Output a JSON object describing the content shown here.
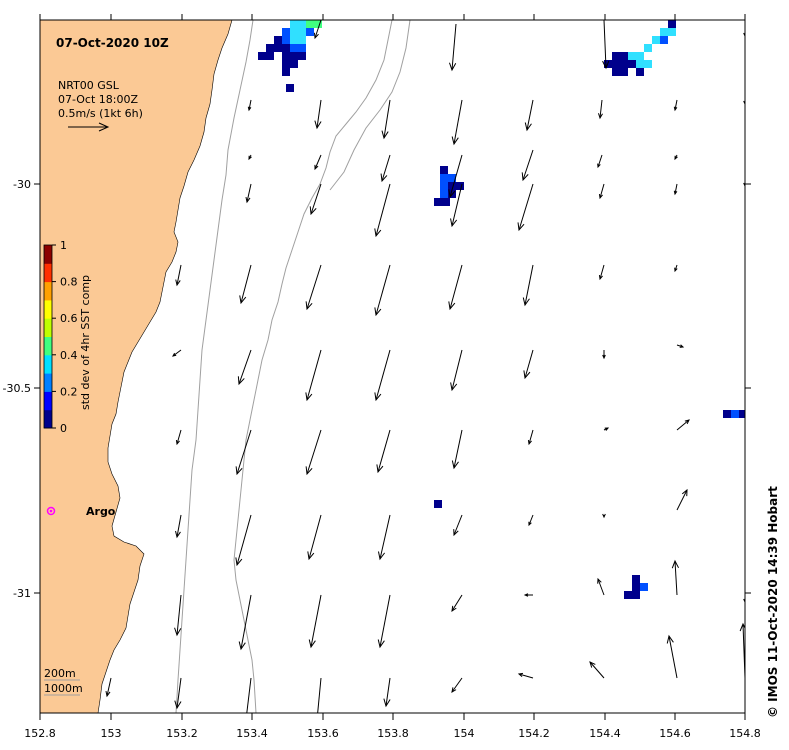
{
  "title": "07-Oct-2020 10Z",
  "legend": {
    "product": "NRT00 GSL",
    "time": "07-Oct 18:00Z",
    "scale_text": "0.5m/s (1kt 6h)"
  },
  "colorbar": {
    "label": "std dev of 4hr SST comp",
    "ticks": [
      "0",
      "0.2",
      "0.4",
      "0.6",
      "0.8",
      "1"
    ],
    "colors": [
      "#00008c",
      "#0000ff",
      "#0080ff",
      "#00e0ff",
      "#40ff80",
      "#c0ff00",
      "#ffff00",
      "#ffa000",
      "#ff3000",
      "#8c0000"
    ]
  },
  "x_ticks": [
    "152.8",
    "153",
    "153.2",
    "153.4",
    "153.6",
    "153.8",
    "154",
    "154.2",
    "154.4",
    "154.6",
    "154.8"
  ],
  "y_ticks": [
    "-30",
    "-30.5",
    "-31"
  ],
  "argo_label": "Argo",
  "depth_legend": [
    "200m",
    "1000m"
  ],
  "credit": "© IMOS 11-Oct-2020 14:39 Hobart",
  "colors": {
    "land": "#fbc995",
    "argo": "#ff00ff",
    "isobath": "#a0a0a0",
    "sst_low": "#00008c",
    "sst_mid": "#0050ff",
    "sst_high": "#30e0ff",
    "sst_green": "#40ff80"
  },
  "icons": [
    "argo-float-marker",
    "current-vector-arrow"
  ]
}
